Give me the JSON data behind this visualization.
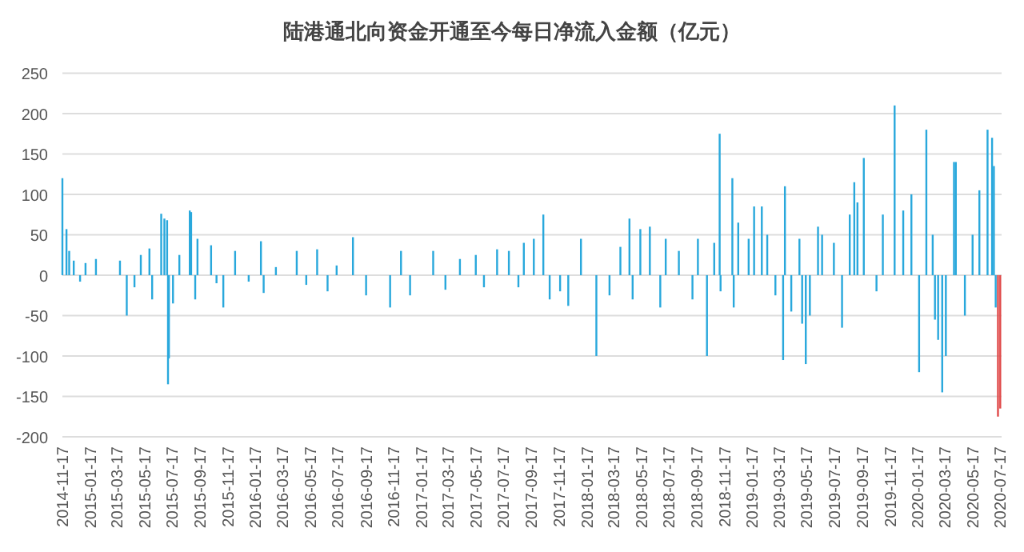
{
  "chart_data": {
    "type": "bar",
    "title": "陆港通北向资金开通至今每日净流入金额（亿元）",
    "xlim": [
      "2014-11-17",
      "2020-07-20"
    ],
    "xticks": [
      "2014-11-17",
      "2015-01-17",
      "2015-03-17",
      "2015-05-17",
      "2015-07-17",
      "2015-09-17",
      "2015-11-17",
      "2016-01-17",
      "2016-03-17",
      "2016-05-17",
      "2016-07-17",
      "2016-09-17",
      "2016-11-17",
      "2017-01-17",
      "2017-03-17",
      "2017-05-17",
      "2017-07-17",
      "2017-09-17",
      "2017-11-17",
      "2018-01-17",
      "2018-03-17",
      "2018-05-17",
      "2018-07-17",
      "2018-09-17",
      "2018-11-17",
      "2019-01-17",
      "2019-03-17",
      "2019-05-17",
      "2019-07-17",
      "2019-09-17",
      "2019-11-17",
      "2020-01-17",
      "2020-03-17",
      "2020-05-17",
      "2020-07-17"
    ],
    "ylim": [
      -200,
      250
    ],
    "yticks": [
      -200,
      -150,
      -100,
      -50,
      0,
      50,
      100,
      150,
      200,
      250
    ],
    "grid": "y",
    "series": [
      {
        "color": "#29a8dc",
        "x": [
          "2014-11-17",
          "2014-11-26",
          "2014-12-02",
          "2014-12-12",
          "2014-12-26",
          "2015-01-07",
          "2015-01-30",
          "2015-03-24",
          "2015-04-08",
          "2015-04-25",
          "2015-05-09",
          "2015-05-28",
          "2015-06-03",
          "2015-06-23",
          "2015-06-30",
          "2015-07-06",
          "2015-07-08",
          "2015-07-10",
          "2015-07-19",
          "2015-08-02",
          "2015-08-25",
          "2015-08-28",
          "2015-09-06",
          "2015-09-11",
          "2015-10-11",
          "2015-10-23",
          "2015-11-07",
          "2015-12-03",
          "2016-01-02",
          "2016-01-29",
          "2016-02-04",
          "2016-03-02",
          "2016-04-17",
          "2016-05-08",
          "2016-06-01",
          "2016-06-24",
          "2016-07-14",
          "2016-08-19",
          "2016-09-17",
          "2016-11-09",
          "2016-12-03",
          "2016-12-23",
          "2017-02-12",
          "2017-03-11",
          "2017-04-12",
          "2017-05-17",
          "2017-06-04",
          "2017-07-03",
          "2017-07-29",
          "2017-08-19",
          "2017-08-31",
          "2017-09-22",
          "2017-10-13",
          "2017-10-27",
          "2017-11-19",
          "2017-12-07",
          "2018-01-04",
          "2018-02-07",
          "2018-03-08",
          "2018-04-01",
          "2018-04-21",
          "2018-04-28",
          "2018-05-15",
          "2018-06-05",
          "2018-06-28",
          "2018-07-10",
          "2018-08-08",
          "2018-09-07",
          "2018-09-19",
          "2018-10-09",
          "2018-10-25",
          "2018-11-06",
          "2018-11-08",
          "2018-12-04",
          "2018-12-07",
          "2018-12-17",
          "2019-01-09",
          "2019-01-21",
          "2019-02-07",
          "2019-02-19",
          "2019-03-09",
          "2019-03-26",
          "2019-03-30",
          "2019-04-13",
          "2019-05-01",
          "2019-05-07",
          "2019-05-15",
          "2019-05-24",
          "2019-06-11",
          "2019-06-20",
          "2019-07-16",
          "2019-08-03",
          "2019-08-20",
          "2019-08-30",
          "2019-09-06",
          "2019-09-20",
          "2019-10-18",
          "2019-11-01",
          "2019-11-27",
          "2019-12-16",
          "2020-01-03",
          "2020-01-20",
          "2020-02-05",
          "2020-02-19",
          "2020-02-24",
          "2020-03-02",
          "2020-03-11",
          "2020-03-19",
          "2020-04-06",
          "2020-04-10",
          "2020-04-30",
          "2020-05-17",
          "2020-06-01",
          "2020-06-19",
          "2020-06-29",
          "2020-07-03",
          "2020-07-07"
        ],
        "values": [
          120,
          57,
          30,
          18,
          -8,
          15,
          20,
          18,
          -50,
          -15,
          25,
          33,
          -30,
          76,
          70,
          68,
          -135,
          -103,
          -35,
          25,
          80,
          78,
          -30,
          45,
          37,
          -10,
          -40,
          30,
          -8,
          42,
          -22,
          10,
          30,
          -12,
          32,
          -20,
          12,
          47,
          -25,
          -40,
          30,
          -25,
          30,
          -18,
          20,
          25,
          -15,
          32,
          30,
          -15,
          40,
          45,
          75,
          -30,
          -20,
          -38,
          45,
          -100,
          -25,
          35,
          70,
          -30,
          57,
          60,
          -40,
          45,
          30,
          -30,
          45,
          -100,
          40,
          175,
          -20,
          120,
          -40,
          65,
          45,
          85,
          85,
          50,
          -25,
          -105,
          110,
          -45,
          45,
          -60,
          -110,
          -50,
          60,
          50,
          40,
          -65,
          75,
          115,
          90,
          145,
          -20,
          75,
          210,
          80,
          100,
          -120,
          180,
          50,
          -55,
          -80,
          -145,
          -100,
          140,
          140,
          -50,
          50,
          105,
          180,
          170,
          135,
          -40
        ]
      },
      {
        "color": "#e04a4a",
        "x": [
          "2020-07-12",
          "2020-07-17"
        ],
        "values": [
          -175,
          -165
        ]
      }
    ]
  }
}
